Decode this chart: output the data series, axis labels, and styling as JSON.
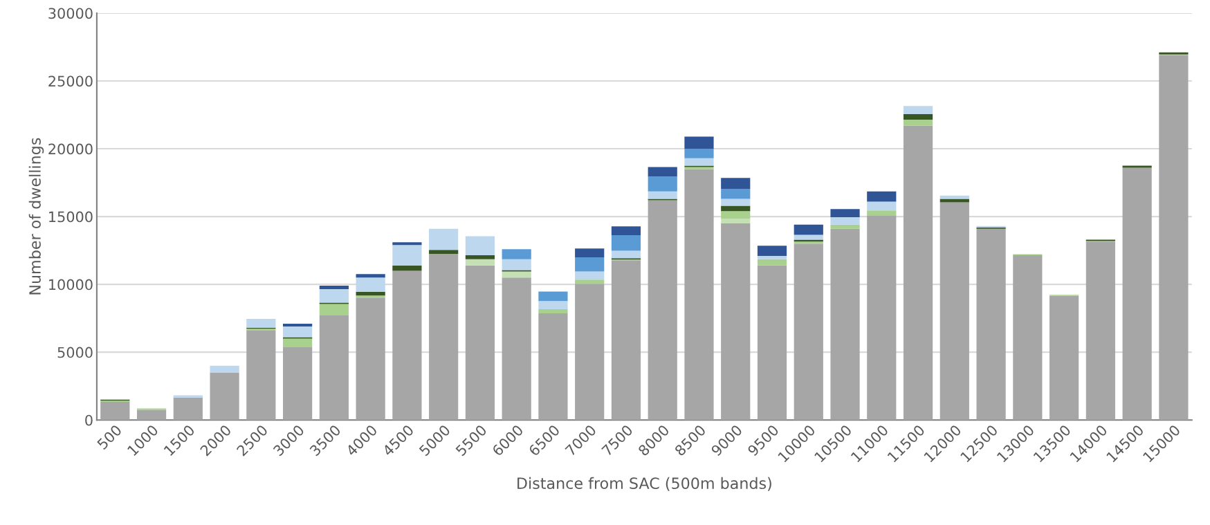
{
  "chart_data": {
    "type": "bar",
    "stacked": true,
    "xlabel": "Distance from SAC (500m bands)",
    "ylabel": "Number of dwellings",
    "categories": [
      "500",
      "1000",
      "1500",
      "2000",
      "2500",
      "3000",
      "3500",
      "4000",
      "4500",
      "5000",
      "5500",
      "6000",
      "6500",
      "7000",
      "7500",
      "8000",
      "8500",
      "9000",
      "9500",
      "10000",
      "10500",
      "11000",
      "11500",
      "12000",
      "12500",
      "13000",
      "13500",
      "14000",
      "14500",
      "15000"
    ],
    "series": [
      {
        "color": "#a6a6a6",
        "values": [
          1340,
          750,
          1650,
          3500,
          6630,
          5400,
          7750,
          9030,
          11000,
          12250,
          11400,
          10500,
          7870,
          10050,
          11780,
          16200,
          18500,
          14500,
          11400,
          13000,
          14100,
          15100,
          21700,
          16050,
          14100,
          12150,
          9150,
          13150,
          18600,
          26900
        ]
      },
      {
        "color": "#c5e0b4",
        "values": [
          0,
          0,
          0,
          0,
          0,
          0,
          0,
          0,
          0,
          0,
          450,
          450,
          0,
          0,
          0,
          0,
          0,
          350,
          0,
          0,
          0,
          0,
          0,
          0,
          0,
          0,
          0,
          0,
          0,
          0
        ]
      },
      {
        "color": "#a9d18e",
        "values": [
          80,
          100,
          0,
          0,
          100,
          600,
          800,
          150,
          0,
          0,
          0,
          0,
          300,
          300,
          50,
          0,
          150,
          550,
          450,
          150,
          300,
          350,
          450,
          0,
          0,
          80,
          80,
          50,
          0,
          50
        ]
      },
      {
        "color": "#375623",
        "values": [
          80,
          0,
          0,
          0,
          80,
          100,
          100,
          280,
          400,
          300,
          300,
          100,
          0,
          0,
          100,
          100,
          100,
          400,
          0,
          150,
          0,
          0,
          400,
          250,
          100,
          0,
          0,
          100,
          150,
          150
        ]
      },
      {
        "color": "#bdd7ee",
        "values": [
          0,
          0,
          170,
          500,
          640,
          800,
          1000,
          1050,
          1500,
          1550,
          1400,
          800,
          600,
          600,
          550,
          550,
          550,
          500,
          250,
          350,
          550,
          650,
          600,
          250,
          100,
          0,
          0,
          0,
          0,
          0
        ]
      },
      {
        "color": "#5b9bd5",
        "values": [
          0,
          0,
          0,
          0,
          0,
          0,
          0,
          0,
          0,
          0,
          0,
          750,
          700,
          1050,
          1150,
          1100,
          700,
          750,
          0,
          0,
          0,
          0,
          0,
          0,
          0,
          0,
          0,
          0,
          0,
          0
        ]
      },
      {
        "color": "#2f5597",
        "values": [
          0,
          0,
          0,
          0,
          0,
          200,
          250,
          250,
          200,
          0,
          0,
          0,
          0,
          650,
          650,
          700,
          900,
          800,
          750,
          750,
          600,
          750,
          0,
          0,
          0,
          0,
          0,
          0,
          0,
          0
        ]
      }
    ],
    "ylim": [
      0,
      30000
    ],
    "yticks": [
      0,
      5000,
      10000,
      15000,
      20000,
      25000,
      30000
    ],
    "grid": "y"
  }
}
